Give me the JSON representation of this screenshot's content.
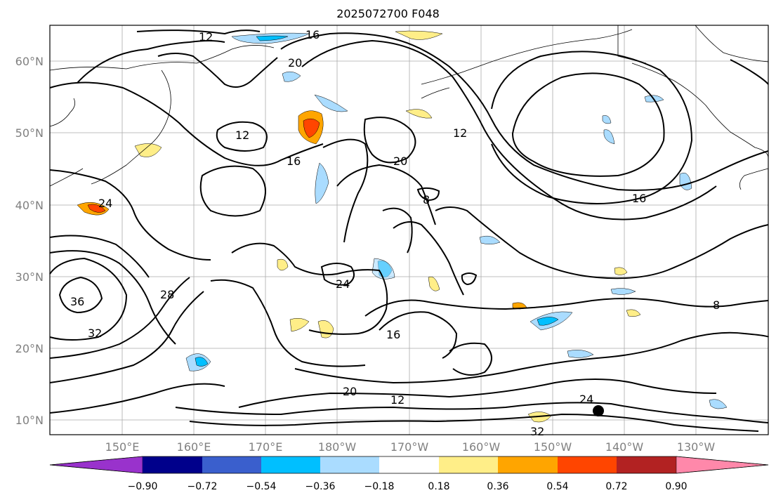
{
  "title": "2025072700 F048",
  "map": {
    "lat_labels": [
      "60°N",
      "50°N",
      "40°N",
      "30°N",
      "20°N",
      "10°N"
    ],
    "lon_labels": [
      "150°E",
      "160°E",
      "170°E",
      "180°W",
      "170°W",
      "160°W",
      "150°W",
      "140°W",
      "130°W"
    ],
    "contour_labels": [
      "12",
      "16",
      "20",
      "24",
      "28",
      "32",
      "36",
      "8",
      "12",
      "16",
      "20",
      "24",
      "16",
      "12",
      "8",
      "20",
      "16",
      "12",
      "24",
      "32"
    ],
    "marker": "storm-center"
  },
  "colorbar": {
    "ticks": [
      "−0.90",
      "−0.72",
      "−0.54",
      "−0.36",
      "−0.18",
      "0.18",
      "0.36",
      "0.54",
      "0.72",
      "0.90"
    ],
    "colors": [
      "#9932cc",
      "#00008b",
      "#3a5fcd",
      "#00bfff",
      "#aadcff",
      "#ffffff",
      "#ffee88",
      "#ffa500",
      "#ff4500",
      "#b22222",
      "#ff88aa"
    ]
  }
}
